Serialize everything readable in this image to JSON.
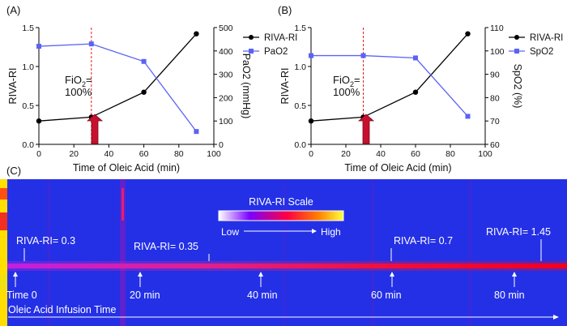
{
  "panels": {
    "a": {
      "label": "(A)",
      "annotation_line1": "FiO",
      "annotation_sub": "2",
      "annotation_eq": "=",
      "annotation_line2": "100%"
    },
    "b": {
      "label": "(B)",
      "annotation_line1": "FiO",
      "annotation_sub": "2",
      "annotation_eq": "=",
      "annotation_line2": "100%"
    },
    "c": {
      "label": "(C)",
      "scale_title": "RIVA-RI Scale",
      "scale_low": "Low",
      "scale_high": "High",
      "time_axis_label": "Oleic Acid Infusion Time",
      "time_labels": [
        "Time 0",
        "20 min",
        "40 min",
        "60 min",
        "80 min"
      ],
      "riva_labels": [
        "RIVA-RI= 0.3",
        "RIVA-RI= 0.35",
        "RIVA-RI= 0.7",
        "RIVA-RI= 1.45"
      ]
    }
  },
  "chart_data": [
    {
      "type": "line",
      "title": "",
      "xlabel": "Time of Oleic Acid (min)",
      "ylabel": "RIVA-RI",
      "y2label": "PaO2 (mmHg)",
      "xlim": [
        0,
        100
      ],
      "ylim": [
        0,
        1.5
      ],
      "y2lim": [
        0,
        500
      ],
      "xticks": [
        "0",
        "20",
        "40",
        "60",
        "80",
        "100"
      ],
      "yticks": [
        "0.0",
        "0.5",
        "1.0",
        "1.5"
      ],
      "y2ticks": [
        "0",
        "100",
        "200",
        "300",
        "400",
        "500"
      ],
      "x": [
        0,
        30,
        60,
        90
      ],
      "series": [
        {
          "name": "RIVA-RI",
          "axis": "left",
          "values": [
            0.3,
            0.35,
            0.67,
            1.42
          ],
          "color": "#000000",
          "marker": "circle"
        },
        {
          "name": "PaO2",
          "axis": "right",
          "values": [
            420,
            430,
            355,
            55
          ],
          "color": "#5b62f5",
          "marker": "square"
        }
      ],
      "annotation_x": 30,
      "legend": "right"
    },
    {
      "type": "line",
      "title": "",
      "xlabel": "Time of Oleic Acid (min)",
      "ylabel": "RIVA-RI",
      "y2label": "SpO2 (%)",
      "xlim": [
        0,
        100
      ],
      "ylim": [
        0,
        1.5
      ],
      "y2lim": [
        60,
        110
      ],
      "xticks": [
        "0",
        "20",
        "40",
        "60",
        "80",
        "100"
      ],
      "yticks": [
        "0.0",
        "0.5",
        "1.0",
        "1.5"
      ],
      "y2ticks": [
        "60",
        "70",
        "80",
        "90",
        "100",
        "110"
      ],
      "x": [
        0,
        30,
        60,
        90
      ],
      "series": [
        {
          "name": "RIVA-RI",
          "axis": "left",
          "values": [
            0.3,
            0.35,
            0.67,
            1.42
          ],
          "color": "#000000",
          "marker": "circle"
        },
        {
          "name": "SpO2",
          "axis": "right",
          "values": [
            98,
            98,
            97,
            72
          ],
          "color": "#5b62f5",
          "marker": "square"
        }
      ],
      "annotation_x": 30,
      "legend": "right"
    },
    {
      "type": "heatmap",
      "title": "RIVA-RI Scale",
      "xlabel": "Oleic Acid Infusion Time",
      "colormap": [
        "#ffffff",
        "#8000ff",
        "#ff0040",
        "#ff8000",
        "#ffff00"
      ],
      "background": "#2430e6"
    }
  ]
}
